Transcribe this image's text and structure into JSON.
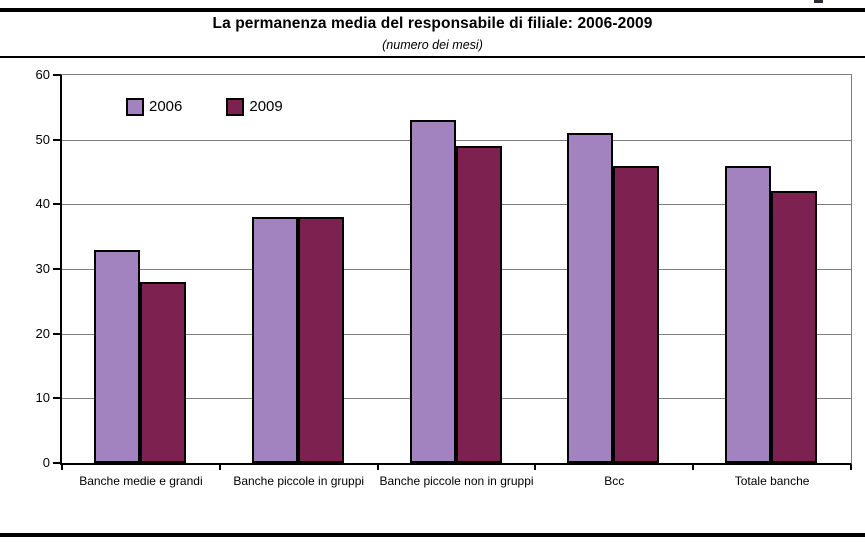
{
  "chart_data": {
    "type": "bar",
    "title": "La permanenza media del responsabile di filiale: 2006-2009",
    "subtitle": "(numero dei mesi)",
    "categories": [
      "Banche medie e grandi",
      "Banche piccole in gruppi",
      "Banche piccole non in gruppi",
      "Bcc",
      "Totale banche"
    ],
    "series": [
      {
        "name": "2006",
        "color": "#a283bf",
        "values": [
          33,
          38,
          53,
          51,
          46
        ]
      },
      {
        "name": "2009",
        "color": "#7c2150",
        "values": [
          28,
          38,
          49,
          46,
          42
        ]
      }
    ],
    "ylim": [
      0,
      60
    ],
    "yticks": [
      0,
      10,
      20,
      30,
      40,
      50,
      60
    ],
    "grid": true,
    "legend_position": "top-left-inside",
    "xlabel": "",
    "ylabel": "",
    "gridline_color": "#7f7f7f",
    "bar_border_color": "#000000"
  }
}
